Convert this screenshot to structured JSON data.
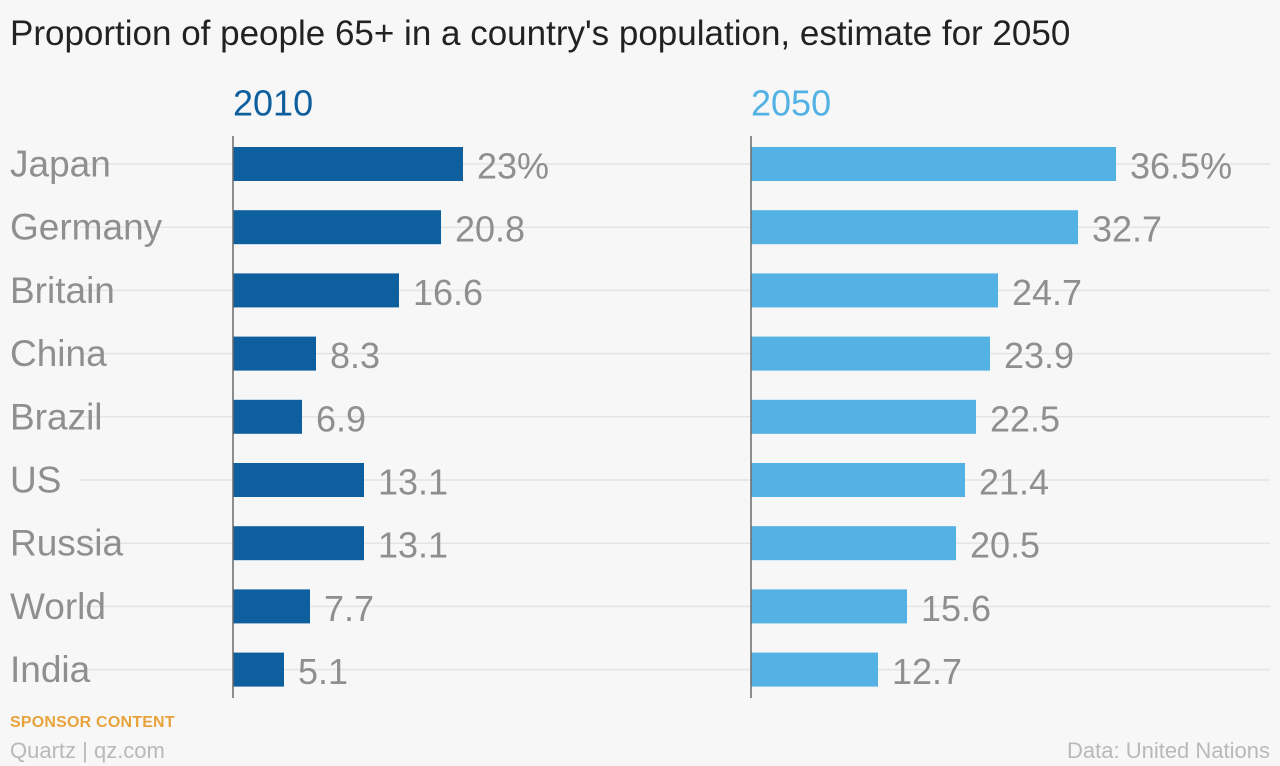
{
  "chart_data": {
    "type": "bar",
    "title": "Proportion of people 65+ in a country's population, estimate for 2050",
    "categories": [
      "Japan",
      "Germany",
      "Britain",
      "China",
      "Brazil",
      "US",
      "Russia",
      "World",
      "India"
    ],
    "series": [
      {
        "name": "2010",
        "color": "#0e5f9e",
        "values": [
          23,
          20.8,
          16.6,
          8.3,
          6.9,
          13.1,
          13.1,
          7.7,
          5.1
        ],
        "labels": [
          "23%",
          "20.8",
          "16.6",
          "8.3",
          "6.9",
          "13.1",
          "13.1",
          "7.7",
          "5.1"
        ]
      },
      {
        "name": "2050",
        "color": "#53b1e3",
        "values": [
          36.5,
          32.7,
          24.7,
          23.9,
          22.5,
          21.4,
          20.5,
          15.6,
          12.7
        ],
        "labels": [
          "36.5%",
          "32.7",
          "24.7",
          "23.9",
          "22.5",
          "21.4",
          "20.5",
          "15.6",
          "12.7"
        ]
      }
    ],
    "orientation": "horizontal",
    "xlim": [
      0,
      36.5
    ],
    "grid": true
  },
  "footer": {
    "sponsor": "SPONSOR CONTENT",
    "brand": "Quartz | qz.com",
    "source": "Data: United Nations"
  }
}
